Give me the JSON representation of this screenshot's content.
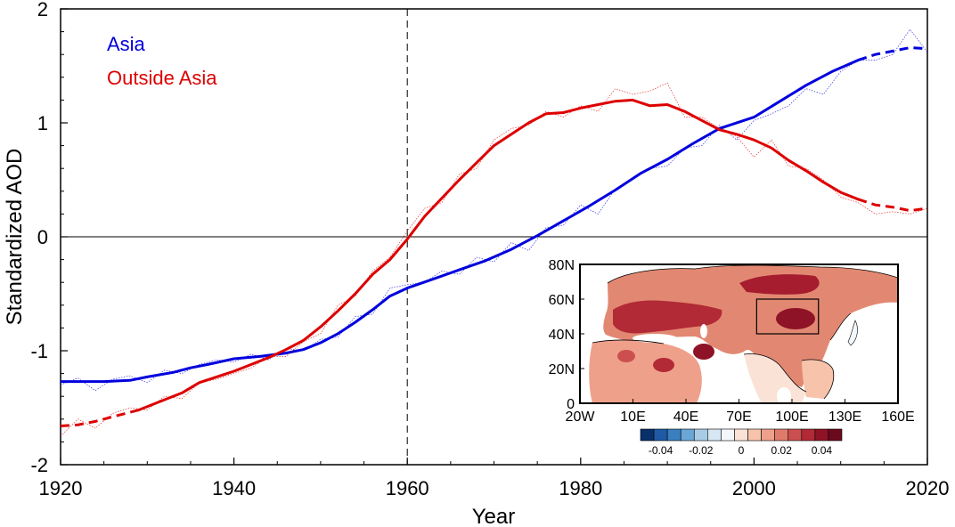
{
  "chart_data": [
    {
      "type": "line",
      "title": "",
      "xlabel": "Year",
      "ylabel": "Standardized AOD",
      "xlim": [
        1920,
        2020
      ],
      "ylim": [
        -2,
        2
      ],
      "x_ticks": [
        1920,
        1940,
        1960,
        1980,
        2000,
        2020
      ],
      "y_ticks": [
        -2,
        -1,
        0,
        1,
        2
      ],
      "grid": false,
      "legend": "top-left",
      "reference_lines": [
        {
          "orientation": "horizontal",
          "value": 0,
          "style": "solid"
        },
        {
          "orientation": "vertical",
          "value": 1960,
          "style": "dashed"
        }
      ],
      "series": [
        {
          "name": "Asia",
          "color": "#0000dd",
          "smoothed": {
            "x": [
              1920,
              1925,
              1928,
              1930,
              1933,
              1935,
              1937,
              1940,
              1943,
              1946,
              1948,
              1950,
              1952,
              1954,
              1956,
              1958,
              1960,
              1963,
              1966,
              1969,
              1972,
              1975,
              1978,
              1981,
              1984,
              1987,
              1990,
              1993,
              1996,
              2000,
              2003,
              2006,
              2009,
              2012
            ],
            "y": [
              -1.27,
              -1.27,
              -1.26,
              -1.23,
              -1.19,
              -1.15,
              -1.12,
              -1.07,
              -1.05,
              -1.02,
              -0.99,
              -0.93,
              -0.85,
              -0.75,
              -0.64,
              -0.52,
              -0.45,
              -0.37,
              -0.29,
              -0.21,
              -0.11,
              0.01,
              0.14,
              0.27,
              0.41,
              0.56,
              0.68,
              0.82,
              0.95,
              1.05,
              1.19,
              1.33,
              1.45,
              1.55
            ]
          },
          "projection": {
            "x": [
              2012,
              2014,
              2016,
              2018,
              2020
            ],
            "y": [
              1.55,
              1.6,
              1.63,
              1.66,
              1.65
            ]
          },
          "annual": {
            "x": [
              1920,
              1922,
              1924,
              1926,
              1928,
              1930,
              1932,
              1934,
              1936,
              1938,
              1940,
              1942,
              1944,
              1946,
              1948,
              1950,
              1952,
              1954,
              1956,
              1958,
              1960,
              1962,
              1964,
              1966,
              1968,
              1970,
              1972,
              1974,
              1976,
              1978,
              1980,
              1982,
              1984,
              1986,
              1988,
              1990,
              1992,
              1994,
              1996,
              1998,
              2000,
              2002,
              2004,
              2006,
              2008,
              2010,
              2012,
              2014,
              2016,
              2018,
              2020
            ],
            "y": [
              -1.3,
              -1.24,
              -1.35,
              -1.25,
              -1.22,
              -1.28,
              -1.17,
              -1.2,
              -1.12,
              -1.08,
              -1.1,
              -1.03,
              -1.08,
              -0.98,
              -1.0,
              -0.9,
              -0.88,
              -0.7,
              -0.68,
              -0.45,
              -0.42,
              -0.4,
              -0.3,
              -0.33,
              -0.18,
              -0.22,
              -0.05,
              -0.12,
              0.08,
              0.1,
              0.28,
              0.2,
              0.42,
              0.5,
              0.6,
              0.62,
              0.78,
              0.8,
              0.98,
              0.85,
              1.02,
              1.08,
              1.15,
              1.3,
              1.25,
              1.45,
              1.55,
              1.55,
              1.6,
              1.82,
              1.62
            ]
          }
        },
        {
          "name": "Outside Asia",
          "color": "#dd0000",
          "smoothed": {
            "x": [
              1929,
              1932,
              1934,
              1936,
              1938,
              1940,
              1942,
              1944,
              1946,
              1948,
              1950,
              1952,
              1954,
              1956,
              1958,
              1960,
              1962,
              1964,
              1966,
              1968,
              1970,
              1972,
              1974,
              1976,
              1978,
              1980,
              1982,
              1984,
              1986,
              1988,
              1990,
              1992,
              1994,
              1996,
              1998,
              2000,
              2002,
              2004,
              2006,
              2008,
              2010,
              2012
            ],
            "y": [
              -1.52,
              -1.43,
              -1.37,
              -1.28,
              -1.23,
              -1.18,
              -1.12,
              -1.06,
              -0.99,
              -0.91,
              -0.79,
              -0.65,
              -0.5,
              -0.33,
              -0.2,
              -0.02,
              0.18,
              0.34,
              0.5,
              0.65,
              0.8,
              0.9,
              1.0,
              1.08,
              1.09,
              1.13,
              1.16,
              1.19,
              1.2,
              1.15,
              1.16,
              1.1,
              1.02,
              0.94,
              0.9,
              0.85,
              0.78,
              0.67,
              0.58,
              0.48,
              0.39,
              0.33
            ]
          },
          "projection": {
            "x": [
              1920,
              1922,
              1924,
              1926,
              1929
            ],
            "y": [
              -1.66,
              -1.65,
              -1.62,
              -1.58,
              -1.52
            ]
          },
          "projection_end": {
            "x": [
              2012,
              2014,
              2016,
              2018,
              2020
            ],
            "y": [
              0.33,
              0.28,
              0.26,
              0.23,
              0.25
            ]
          },
          "annual": {
            "x": [
              1920,
              1922,
              1924,
              1926,
              1928,
              1930,
              1932,
              1934,
              1936,
              1938,
              1940,
              1942,
              1944,
              1946,
              1948,
              1950,
              1952,
              1954,
              1956,
              1958,
              1960,
              1962,
              1964,
              1966,
              1968,
              1970,
              1972,
              1974,
              1976,
              1978,
              1980,
              1982,
              1984,
              1986,
              1988,
              1990,
              1992,
              1994,
              1996,
              1998,
              2000,
              2002,
              2004,
              2006,
              2008,
              2010,
              2012,
              2014,
              2016,
              2018,
              2020
            ],
            "y": [
              -1.75,
              -1.6,
              -1.68,
              -1.55,
              -1.5,
              -1.52,
              -1.4,
              -1.42,
              -1.28,
              -1.25,
              -1.2,
              -1.15,
              -1.05,
              -1.05,
              -0.92,
              -0.85,
              -0.6,
              -0.52,
              -0.3,
              -0.18,
              0.05,
              0.25,
              0.3,
              0.55,
              0.6,
              0.85,
              0.95,
              0.98,
              1.1,
              1.05,
              1.15,
              1.1,
              1.3,
              1.25,
              1.28,
              1.35,
              1.05,
              1.05,
              0.95,
              0.88,
              0.7,
              0.85,
              0.62,
              0.6,
              0.5,
              0.35,
              0.3,
              0.2,
              0.22,
              0.2,
              0.25
            ]
          }
        }
      ]
    },
    {
      "type": "heatmap",
      "title": "",
      "lon_ticks": [
        "20W",
        "10E",
        "40E",
        "70E",
        "100E",
        "130E",
        "160E"
      ],
      "lat_ticks": [
        "0",
        "20N",
        "40N",
        "60N",
        "80N"
      ],
      "colorbar": {
        "ticks": [
          "-0.04",
          "-0.02",
          "0",
          "0.02",
          "0.04"
        ],
        "colors": [
          "#08306b",
          "#1f5aa6",
          "#3a7fc0",
          "#6aa6d6",
          "#a8cce6",
          "#d6e6f2",
          "#f3f6fa",
          "#fbe2d6",
          "#f7c3ab",
          "#eea08b",
          "#e07b6b",
          "#cc4f4f",
          "#b22a36",
          "#8e1326",
          "#6b0a1c"
        ]
      },
      "region_box": {
        "lon": [
          80,
          115
        ],
        "lat": [
          40,
          60
        ]
      }
    }
  ]
}
